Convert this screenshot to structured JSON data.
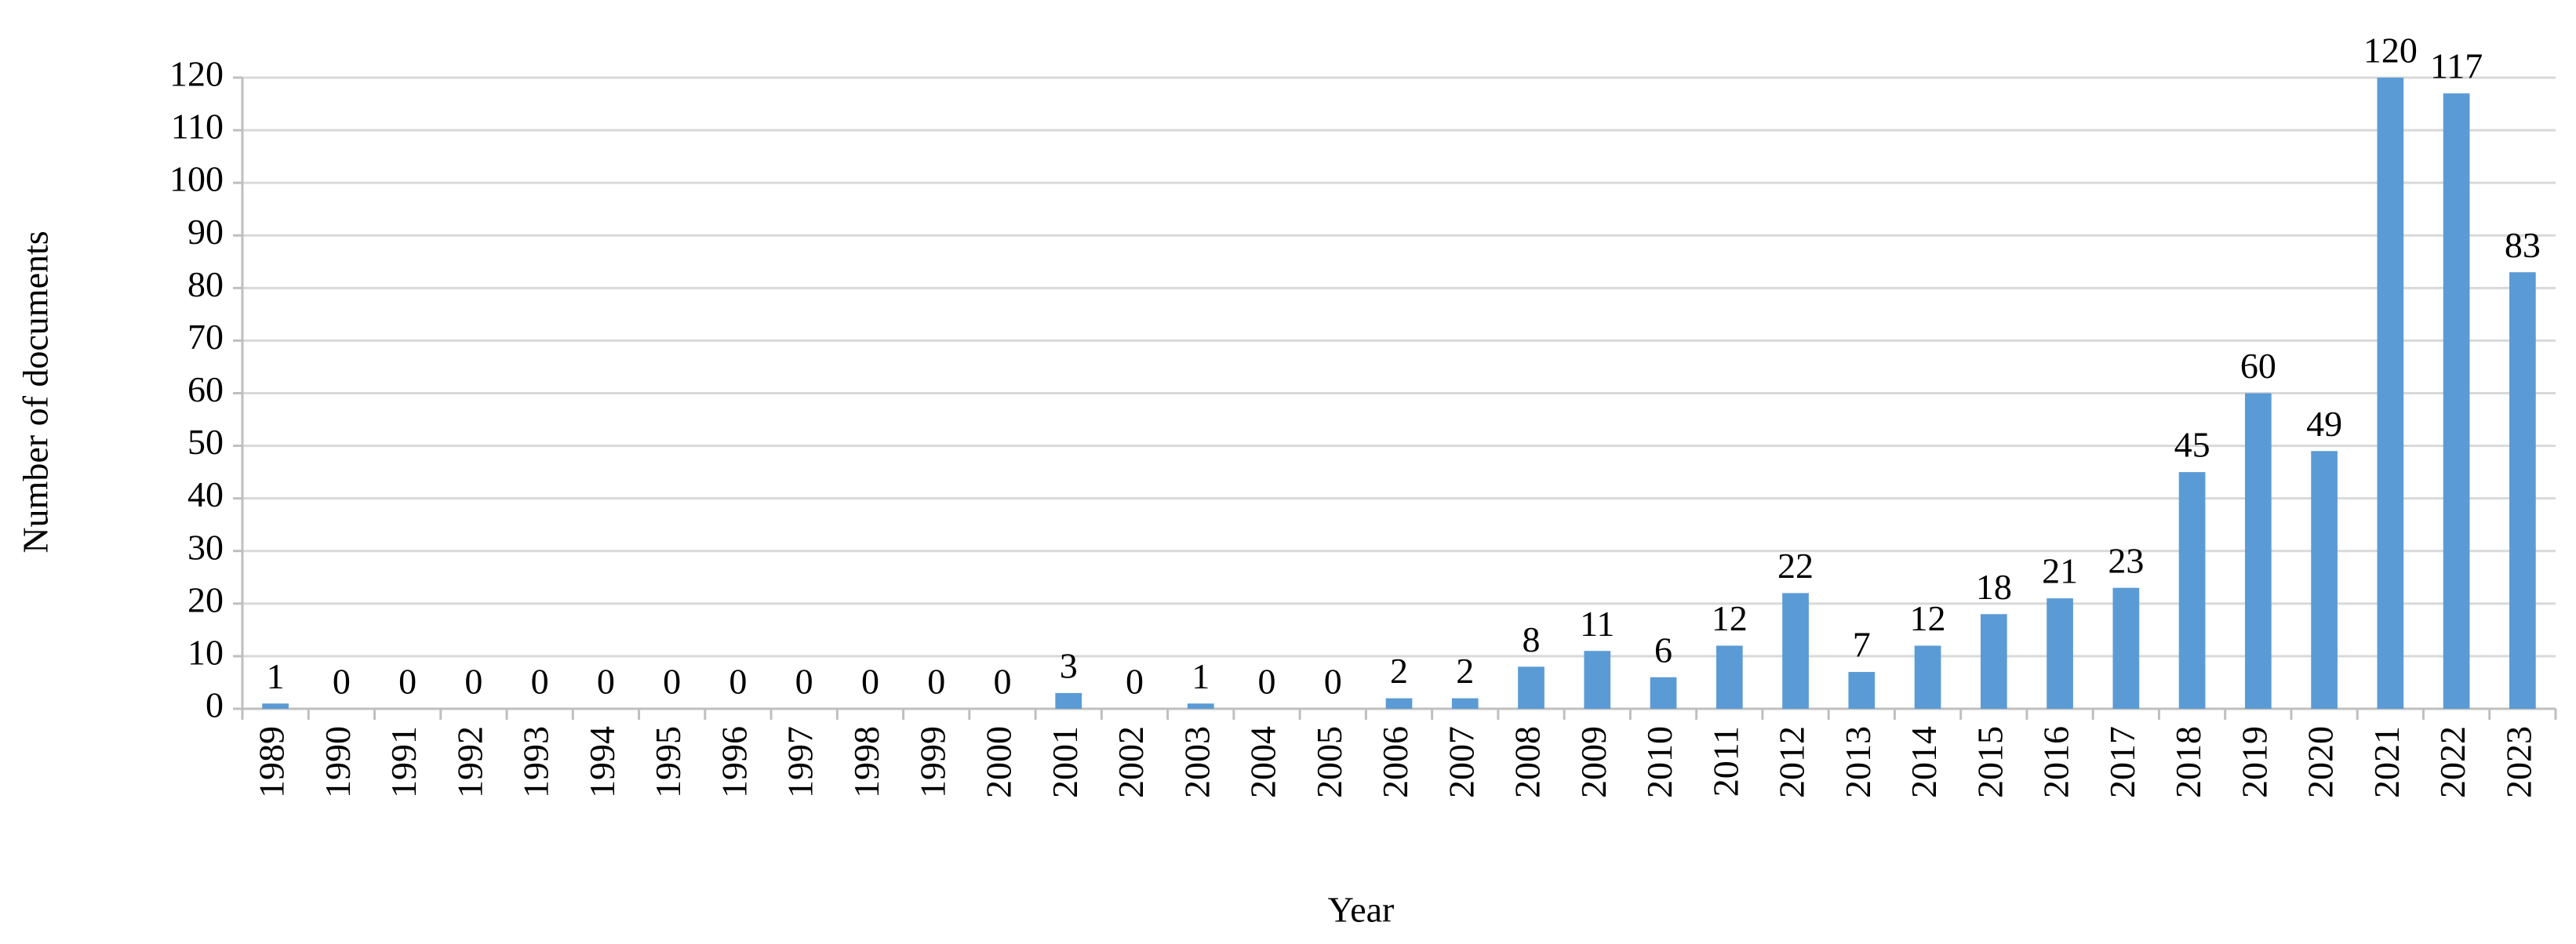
{
  "chart_data": {
    "type": "bar",
    "x_label": "Year",
    "y_label": "Number of documents",
    "categories": [
      "1989",
      "1990",
      "1991",
      "1992",
      "1993",
      "1994",
      "1995",
      "1996",
      "1997",
      "1998",
      "1999",
      "2000",
      "2001",
      "2002",
      "2003",
      "2004",
      "2005",
      "2006",
      "2007",
      "2008",
      "2009",
      "2010",
      "2011",
      "2012",
      "2013",
      "2014",
      "2015",
      "2016",
      "2017",
      "2018",
      "2019",
      "2020",
      "2021",
      "2022",
      "2023"
    ],
    "values": [
      1,
      0,
      0,
      0,
      0,
      0,
      0,
      0,
      0,
      0,
      0,
      0,
      3,
      0,
      1,
      0,
      0,
      2,
      2,
      8,
      11,
      6,
      12,
      22,
      7,
      12,
      18,
      21,
      23,
      45,
      60,
      49,
      120,
      117,
      83
    ],
    "color": "#5b9bd5",
    "ylim": [
      0,
      120
    ],
    "yticks": [
      0,
      10,
      20,
      30,
      40,
      50,
      60,
      70,
      80,
      90,
      100,
      110,
      120
    ],
    "grid": true
  }
}
